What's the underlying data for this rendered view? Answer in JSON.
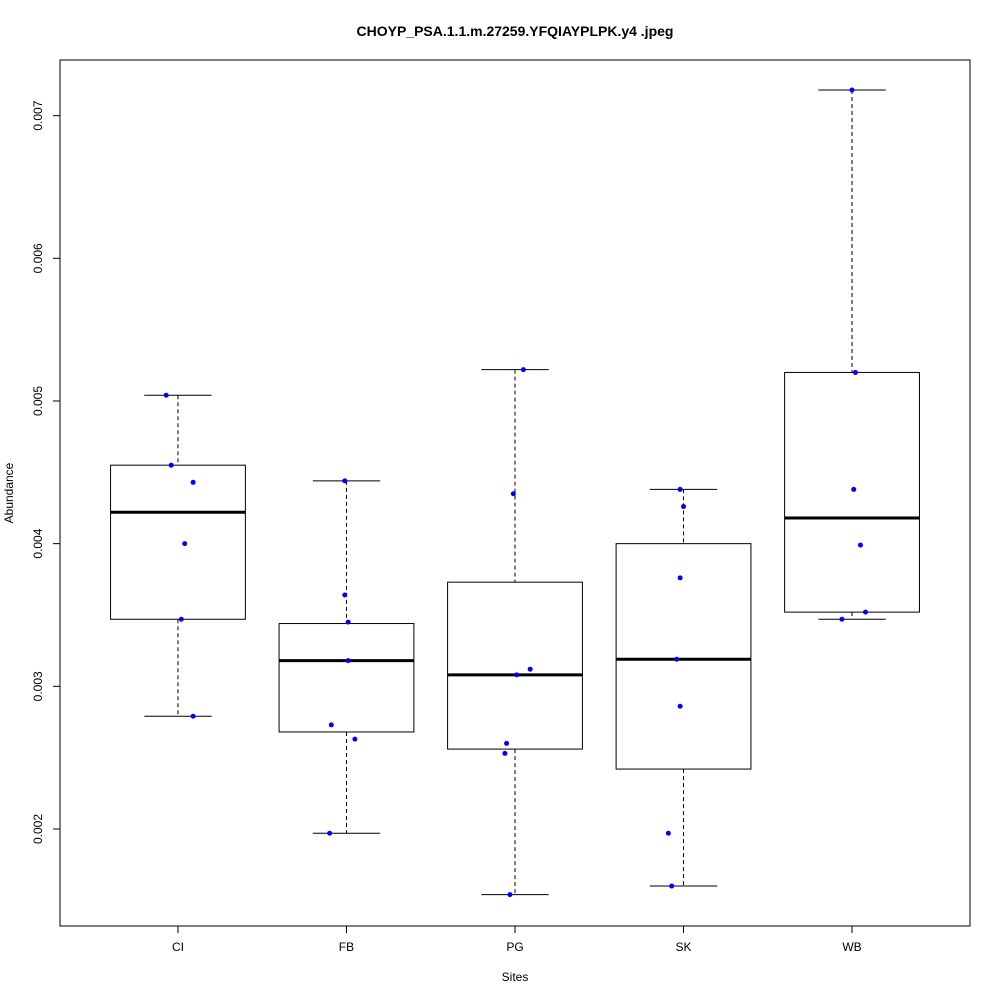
{
  "chart_data": {
    "type": "boxplot",
    "title": "CHOYP_PSA.1.1.m.27259.YFQIAYPLPK.y4 .jpeg",
    "xlabel": "Sites",
    "ylabel": "Abundance",
    "categories": [
      "CI",
      "FB",
      "PG",
      "SK",
      "WB"
    ],
    "ylim": [
      0.00132,
      0.00739
    ],
    "xlim": [
      0.3,
      5.7
    ],
    "yticks": [
      0.002,
      0.003,
      0.004,
      0.005,
      0.006,
      0.007
    ],
    "ytick_labels": [
      "0.002",
      "0.003",
      "0.004",
      "0.005",
      "0.006",
      "0.007"
    ],
    "grid": false,
    "point_color": "#0000ff",
    "boxes": [
      {
        "category": "CI",
        "min": 0.00279,
        "q1": 0.00347,
        "median": 0.00422,
        "q3": 0.00455,
        "max": 0.00504
      },
      {
        "category": "FB",
        "min": 0.00197,
        "q1": 0.00268,
        "median": 0.00318,
        "q3": 0.00344,
        "max": 0.00444
      },
      {
        "category": "PG",
        "min": 0.00154,
        "q1": 0.00256,
        "median": 0.00308,
        "q3": 0.00373,
        "max": 0.00522
      },
      {
        "category": "SK",
        "min": 0.0016,
        "q1": 0.00242,
        "median": 0.00319,
        "q3": 0.004,
        "max": 0.00438
      },
      {
        "category": "WB",
        "min": 0.00347,
        "q1": 0.00352,
        "median": 0.00418,
        "q3": 0.0052,
        "max": 0.00718
      }
    ],
    "points": [
      {
        "category": "CI",
        "jitter": -0.07,
        "value": 0.00504
      },
      {
        "category": "CI",
        "jitter": -0.04,
        "value": 0.00455
      },
      {
        "category": "CI",
        "jitter": 0.09,
        "value": 0.00443
      },
      {
        "category": "CI",
        "jitter": 0.04,
        "value": 0.004
      },
      {
        "category": "CI",
        "jitter": 0.02,
        "value": 0.00347
      },
      {
        "category": "CI",
        "jitter": 0.09,
        "value": 0.00279
      },
      {
        "category": "FB",
        "jitter": -0.01,
        "value": 0.00444
      },
      {
        "category": "FB",
        "jitter": -0.01,
        "value": 0.00364
      },
      {
        "category": "FB",
        "jitter": 0.01,
        "value": 0.00345
      },
      {
        "category": "FB",
        "jitter": 0.01,
        "value": 0.00318
      },
      {
        "category": "FB",
        "jitter": -0.09,
        "value": 0.00273
      },
      {
        "category": "FB",
        "jitter": 0.05,
        "value": 0.00263
      },
      {
        "category": "FB",
        "jitter": -0.1,
        "value": 0.00197
      },
      {
        "category": "PG",
        "jitter": 0.05,
        "value": 0.00522
      },
      {
        "category": "PG",
        "jitter": -0.01,
        "value": 0.00435
      },
      {
        "category": "PG",
        "jitter": 0.09,
        "value": 0.00312
      },
      {
        "category": "PG",
        "jitter": 0.01,
        "value": 0.00308
      },
      {
        "category": "PG",
        "jitter": -0.05,
        "value": 0.0026
      },
      {
        "category": "PG",
        "jitter": -0.06,
        "value": 0.00253
      },
      {
        "category": "PG",
        "jitter": -0.03,
        "value": 0.00154
      },
      {
        "category": "SK",
        "jitter": -0.02,
        "value": 0.00438
      },
      {
        "category": "SK",
        "jitter": 0.0,
        "value": 0.00426
      },
      {
        "category": "SK",
        "jitter": -0.02,
        "value": 0.00376
      },
      {
        "category": "SK",
        "jitter": -0.04,
        "value": 0.00319
      },
      {
        "category": "SK",
        "jitter": -0.02,
        "value": 0.00286
      },
      {
        "category": "SK",
        "jitter": -0.09,
        "value": 0.00197
      },
      {
        "category": "SK",
        "jitter": -0.07,
        "value": 0.0016
      },
      {
        "category": "WB",
        "jitter": 0.0,
        "value": 0.00718
      },
      {
        "category": "WB",
        "jitter": 0.02,
        "value": 0.0052
      },
      {
        "category": "WB",
        "jitter": 0.01,
        "value": 0.00438
      },
      {
        "category": "WB",
        "jitter": 0.05,
        "value": 0.00399
      },
      {
        "category": "WB",
        "jitter": 0.08,
        "value": 0.00352
      },
      {
        "category": "WB",
        "jitter": -0.06,
        "value": 0.00347
      }
    ]
  }
}
